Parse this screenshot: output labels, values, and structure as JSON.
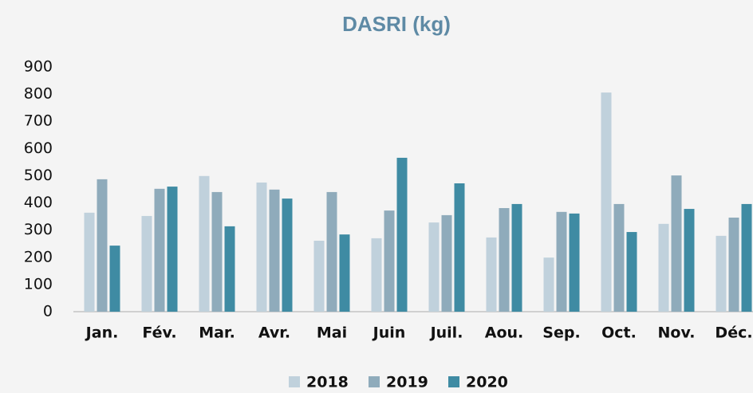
{
  "chart_data": {
    "type": "bar",
    "title": "DASRI (kg)",
    "categories": [
      "Jan.",
      "Fév.",
      "Mar.",
      "Avr.",
      "Mai",
      "Juin",
      "Juil.",
      "Aou.",
      "Sep.",
      "Oct.",
      "Nov.",
      "Déc."
    ],
    "series": [
      {
        "name": "2018",
        "color": "#c0d1dc",
        "values": [
          364,
          352,
          499,
          475,
          261,
          270,
          328,
          273,
          199,
          806,
          323,
          279
        ]
      },
      {
        "name": "2019",
        "color": "#8fabbb",
        "values": [
          487,
          452,
          440,
          449,
          440,
          372,
          355,
          381,
          367,
          396,
          501,
          346
        ]
      },
      {
        "name": "2020",
        "color": "#3f8ba3",
        "values": [
          243,
          460,
          314,
          416,
          284,
          566,
          472,
          396,
          361,
          293,
          378,
          396
        ]
      }
    ],
    "ylim": [
      0,
      900
    ],
    "yticks": [
      0,
      100,
      200,
      300,
      400,
      500,
      600,
      700,
      800,
      900
    ],
    "grid": false
  }
}
